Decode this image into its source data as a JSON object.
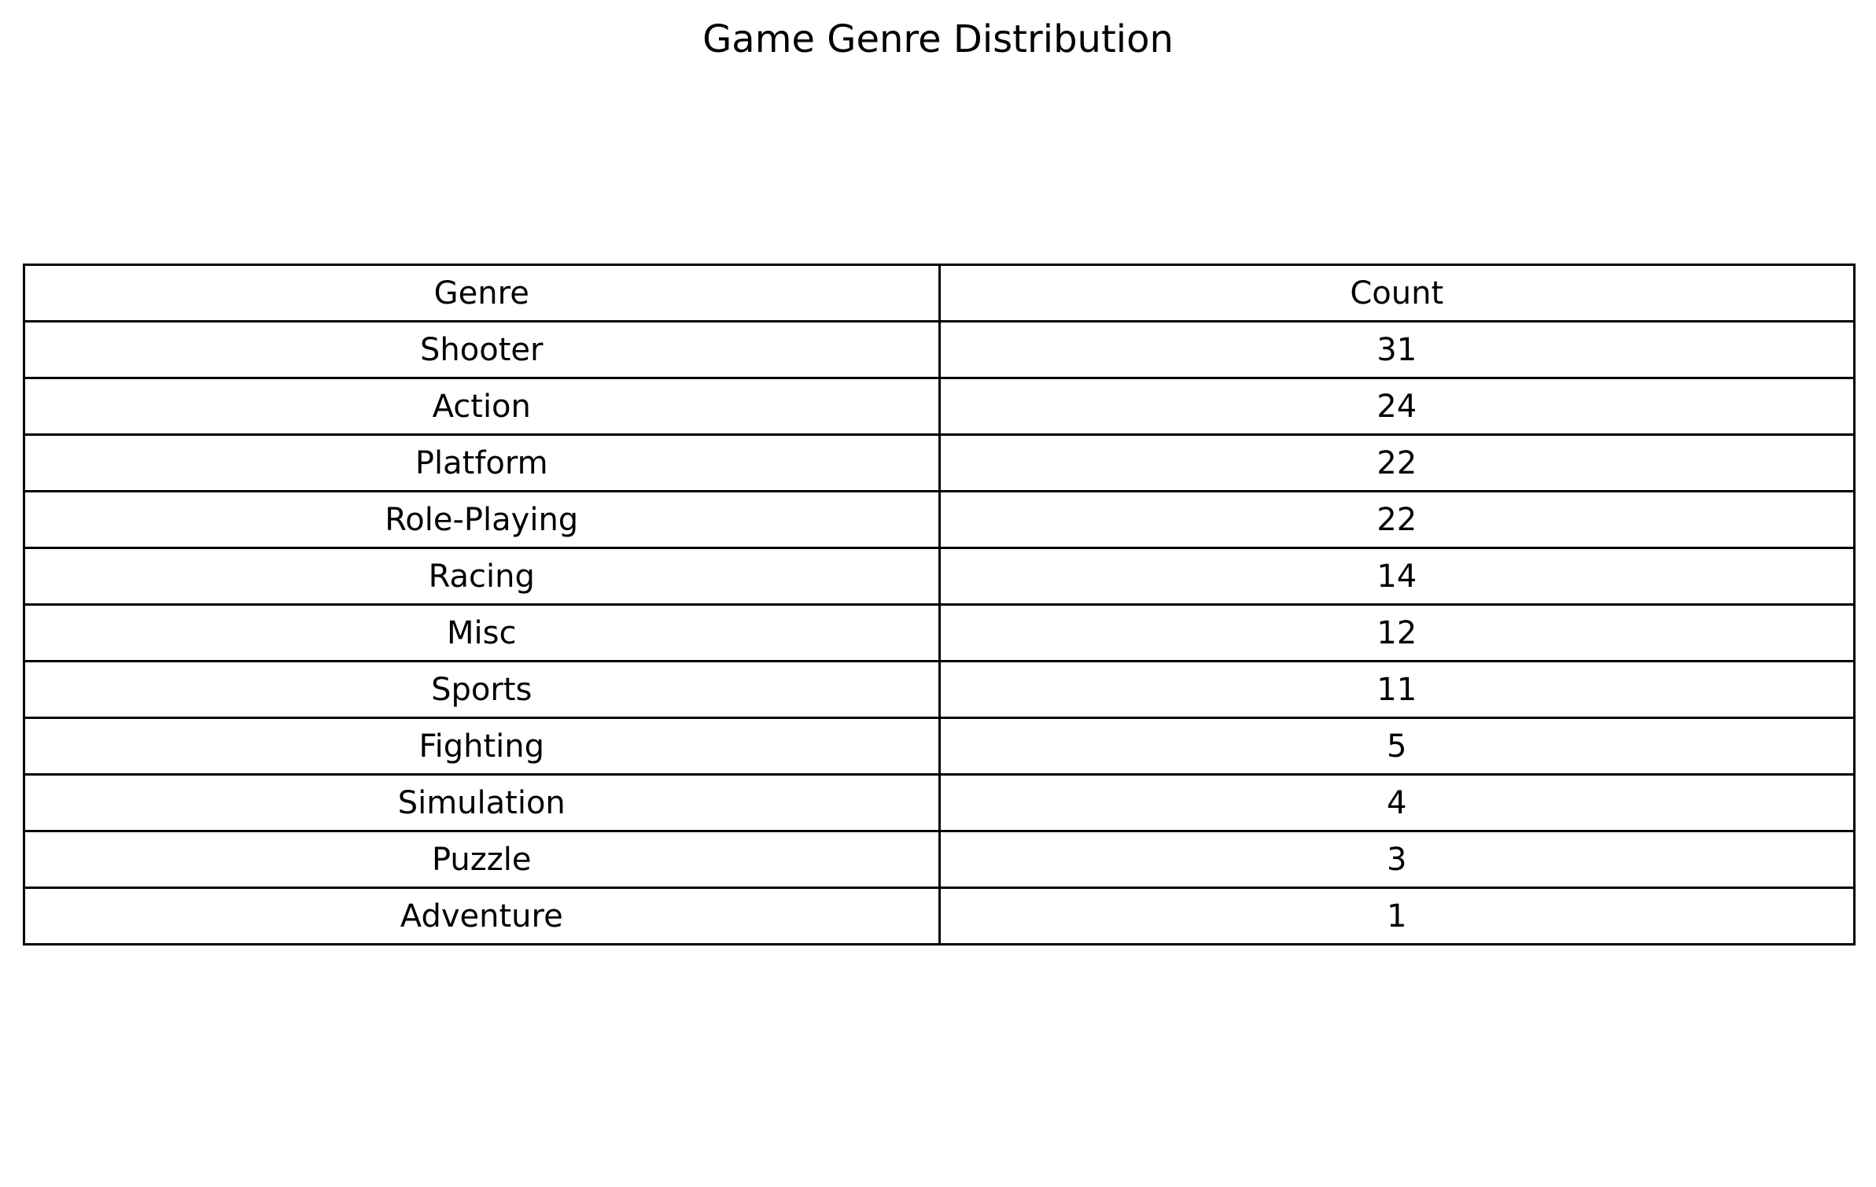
{
  "chart_data": {
    "type": "table",
    "title": "Game Genre Distribution",
    "columns": [
      "Genre",
      "Count"
    ],
    "rows": [
      {
        "genre": "Shooter",
        "count": "31"
      },
      {
        "genre": "Action",
        "count": "24"
      },
      {
        "genre": "Platform",
        "count": "22"
      },
      {
        "genre": "Role-Playing",
        "count": "22"
      },
      {
        "genre": "Racing",
        "count": "14"
      },
      {
        "genre": "Misc",
        "count": "12"
      },
      {
        "genre": "Sports",
        "count": "11"
      },
      {
        "genre": "Fighting",
        "count": "5"
      },
      {
        "genre": "Simulation",
        "count": "4"
      },
      {
        "genre": "Puzzle",
        "count": "3"
      },
      {
        "genre": "Adventure",
        "count": "1"
      }
    ],
    "colors": {
      "border": "#000000",
      "text": "#000000",
      "background": "#ffffff"
    }
  }
}
